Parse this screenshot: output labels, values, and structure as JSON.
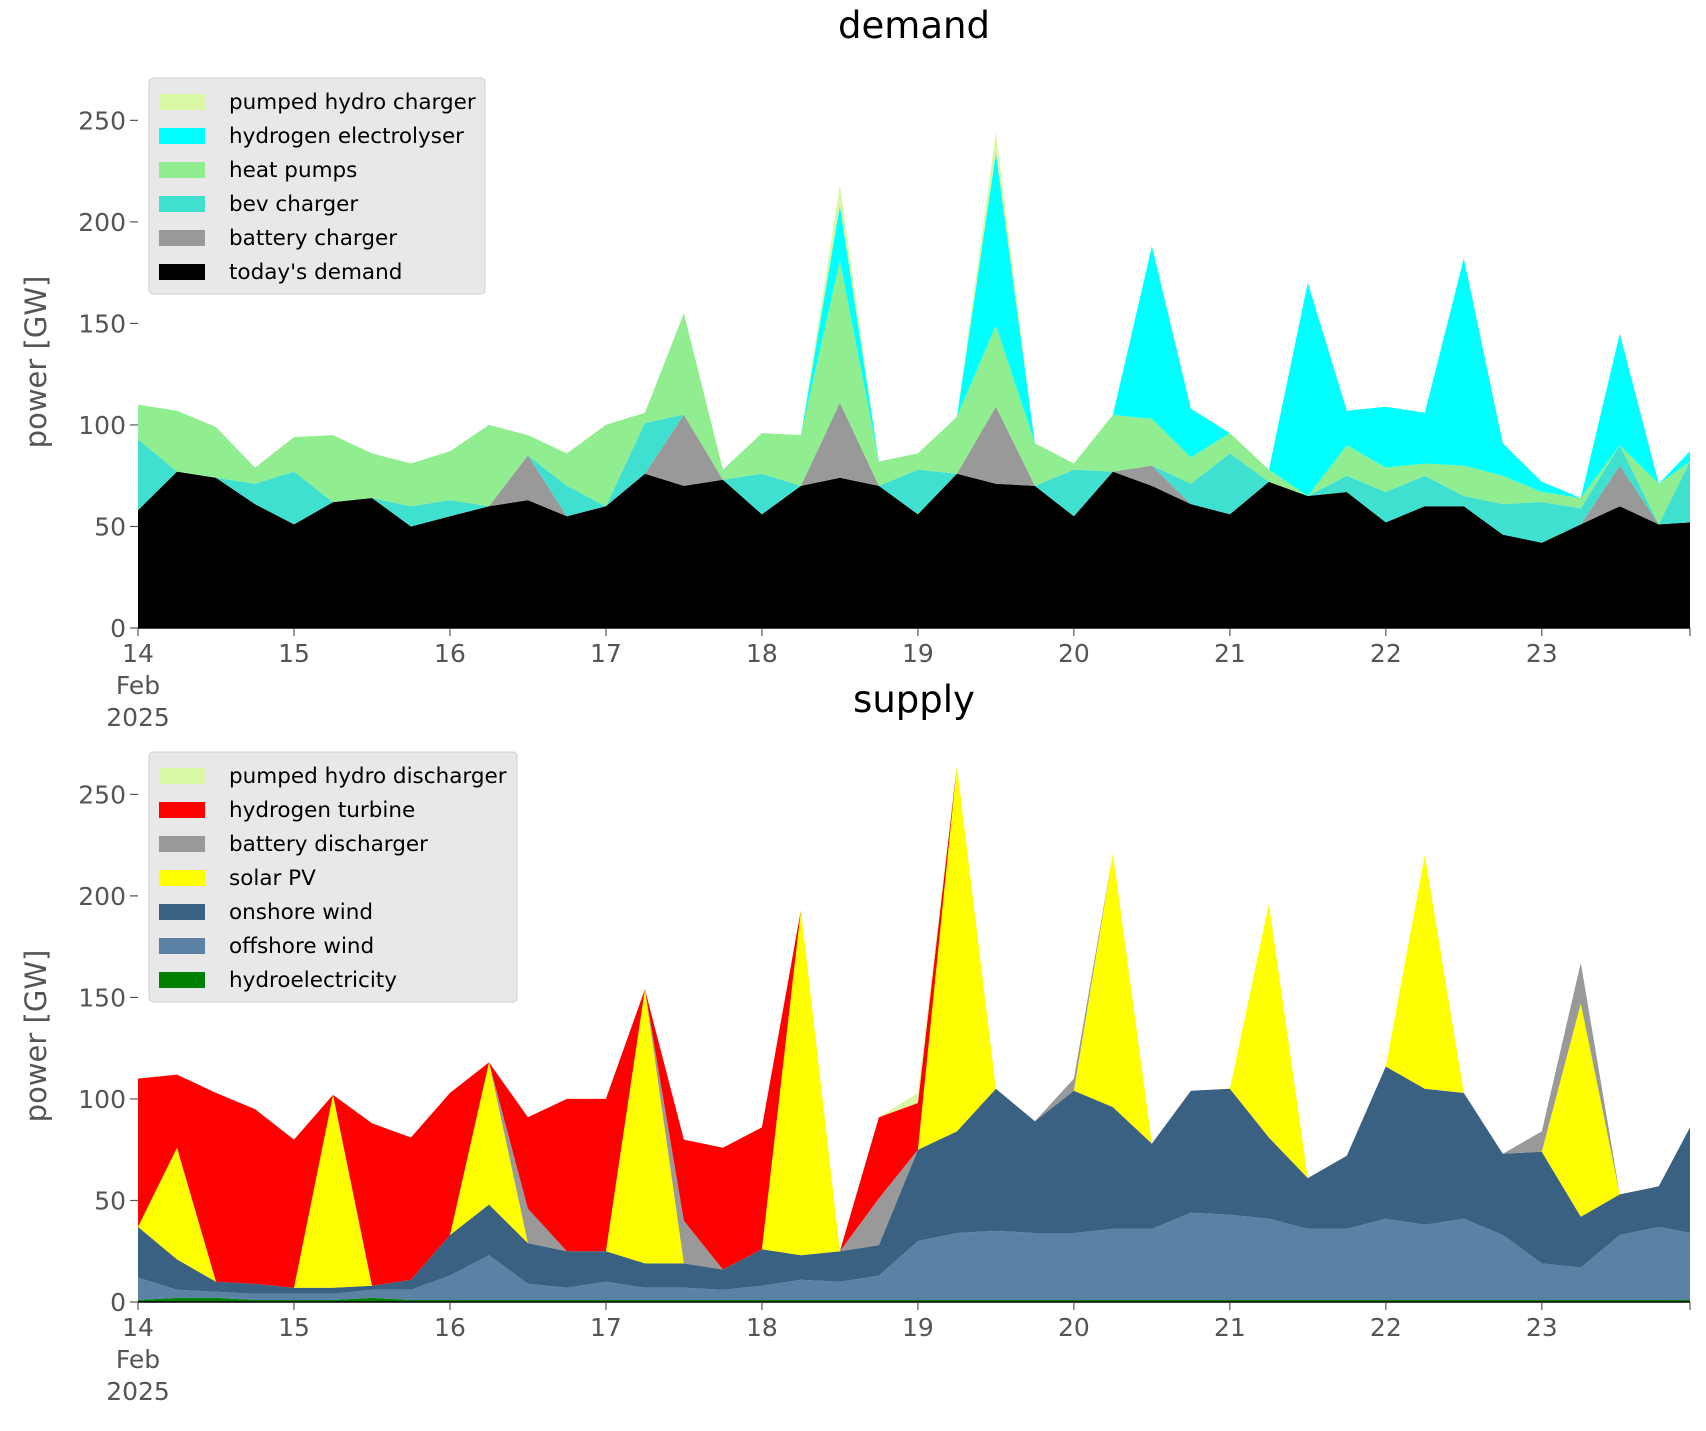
{
  "chart_data": [
    {
      "type": "area",
      "title": "demand",
      "ylabel": "power [GW]",
      "xlabel": "",
      "ylim": [
        0,
        262
      ],
      "yticks": [
        0,
        50,
        100,
        150,
        200,
        250
      ],
      "x_tick_labels": [
        "14\nFeb\n2025",
        "15",
        "16",
        "17",
        "18",
        "19",
        "20",
        "21",
        "22",
        "23"
      ],
      "x_unit": "days since 14 Feb 2025",
      "x": [
        0,
        0.25,
        0.5,
        0.75,
        1,
        1.25,
        1.5,
        1.75,
        2,
        2.25,
        2.5,
        2.75,
        3,
        3.25,
        3.5,
        3.75,
        4,
        4.25,
        4.5,
        4.75,
        5,
        5.25,
        5.5,
        5.75,
        6,
        6.25,
        6.5,
        6.75,
        7,
        7.25,
        7.5,
        7.75,
        8,
        8.25,
        8.5,
        8.75,
        9,
        9.25,
        9.5,
        9.75,
        9.95
      ],
      "legend_position": "upper left",
      "grid": false,
      "series": [
        {
          "name": "today's demand",
          "color": "#000000",
          "values": [
            58,
            77,
            74,
            61,
            51,
            62,
            64,
            50,
            55,
            60,
            63,
            55,
            60,
            76,
            70,
            73,
            56,
            70,
            74,
            70,
            56,
            76,
            71,
            70,
            55,
            77,
            70,
            61,
            56,
            72,
            65,
            67,
            52,
            60,
            60,
            46,
            42,
            51,
            60,
            51,
            52
          ]
        },
        {
          "name": "battery charger",
          "color": "#999999",
          "values": [
            0,
            0,
            0,
            0,
            0,
            0,
            0,
            0,
            0,
            0,
            22,
            0,
            0,
            0,
            35,
            0,
            0,
            0,
            37,
            0,
            0,
            0,
            38,
            0,
            0,
            0,
            10,
            0,
            0,
            0,
            0,
            0,
            0,
            0,
            0,
            0,
            0,
            0,
            20,
            0,
            0
          ]
        },
        {
          "name": "bev charger",
          "color": "#40e0d0",
          "values": [
            35,
            0,
            0,
            10,
            26,
            0,
            0,
            10,
            8,
            0,
            0,
            15,
            0,
            25,
            0,
            0,
            20,
            0,
            0,
            0,
            22,
            0,
            0,
            0,
            23,
            0,
            0,
            10,
            30,
            0,
            0,
            8,
            15,
            15,
            5,
            15,
            20,
            8,
            10,
            0,
            30
          ]
        },
        {
          "name": "heat pumps",
          "color": "#90ee90",
          "values": [
            17,
            30,
            25,
            8,
            17,
            33,
            22,
            21,
            24,
            40,
            10,
            16,
            40,
            5,
            50,
            5,
            20,
            25,
            70,
            12,
            8,
            28,
            40,
            21,
            3,
            28,
            23,
            13,
            10,
            6,
            0,
            15,
            12,
            6,
            15,
            14,
            5,
            5,
            0,
            20,
            0
          ]
        },
        {
          "name": "hydrogen electrolyser",
          "color": "#00ffff",
          "values": [
            0,
            0,
            0,
            0,
            0,
            0,
            0,
            0,
            0,
            0,
            0,
            0,
            0,
            0,
            0,
            0,
            0,
            0,
            27,
            0,
            0,
            0,
            85,
            0,
            0,
            0,
            85,
            24,
            0,
            0,
            105,
            17,
            30,
            25,
            102,
            16,
            5,
            0,
            55,
            0,
            5
          ]
        },
        {
          "name": "pumped hydro charger",
          "color": "#d9f7a5",
          "values": [
            0,
            0,
            0,
            0,
            0,
            0,
            0,
            0,
            0,
            0,
            0,
            0,
            0,
            0,
            0,
            0,
            0,
            0,
            10,
            0,
            0,
            0,
            10,
            0,
            0,
            0,
            0,
            0,
            0,
            0,
            0,
            0,
            0,
            0,
            0,
            0,
            0,
            0,
            0,
            0,
            0
          ]
        }
      ]
    },
    {
      "type": "area",
      "title": "supply",
      "ylabel": "power [GW]",
      "xlabel": "",
      "ylim": [
        0,
        262
      ],
      "yticks": [
        0,
        50,
        100,
        150,
        200,
        250
      ],
      "x_tick_labels": [
        "14\nFeb\n2025",
        "15",
        "16",
        "17",
        "18",
        "19",
        "20",
        "21",
        "22",
        "23"
      ],
      "x_unit": "days since 14 Feb 2025",
      "x": [
        0,
        0.25,
        0.5,
        0.75,
        1,
        1.25,
        1.5,
        1.75,
        2,
        2.25,
        2.5,
        2.75,
        3,
        3.25,
        3.5,
        3.75,
        4,
        4.25,
        4.5,
        4.75,
        5,
        5.25,
        5.5,
        5.75,
        6,
        6.25,
        6.5,
        6.75,
        7,
        7.25,
        7.5,
        7.75,
        8,
        8.25,
        8.5,
        8.75,
        9,
        9.25,
        9.5,
        9.75,
        9.95
      ],
      "legend_position": "upper left",
      "grid": false,
      "series": [
        {
          "name": "hydroelectricity",
          "color": "#008000",
          "values": [
            1,
            2,
            2,
            1,
            1,
            1,
            2,
            1,
            1,
            1,
            1,
            1,
            1,
            1,
            1,
            1,
            1,
            1,
            1,
            1,
            1,
            1,
            1,
            1,
            1,
            1,
            1,
            1,
            1,
            1,
            1,
            1,
            1,
            1,
            1,
            1,
            1,
            1,
            1,
            1,
            1
          ]
        },
        {
          "name": "offshore wind",
          "color": "#5b82a5",
          "values": [
            11,
            4,
            3,
            3,
            3,
            3,
            4,
            5,
            12,
            22,
            8,
            6,
            9,
            6,
            6,
            5,
            7,
            10,
            9,
            12,
            29,
            33,
            34,
            33,
            33,
            35,
            35,
            43,
            42,
            40,
            35,
            35,
            40,
            37,
            40,
            32,
            18,
            16,
            32,
            36,
            33
          ]
        },
        {
          "name": "onshore wind",
          "color": "#3a6182",
          "values": [
            25,
            15,
            5,
            5,
            3,
            3,
            2,
            5,
            20,
            25,
            20,
            18,
            15,
            12,
            12,
            10,
            18,
            12,
            15,
            15,
            45,
            50,
            70,
            55,
            70,
            60,
            42,
            60,
            62,
            40,
            25,
            36,
            75,
            67,
            62,
            40,
            55,
            25,
            20,
            20,
            52
          ]
        },
        {
          "name": "solar PV",
          "color": "#ffff00",
          "values": [
            0,
            55,
            0,
            0,
            0,
            95,
            0,
            0,
            0,
            70,
            0,
            0,
            0,
            135,
            0,
            0,
            0,
            170,
            0,
            0,
            0,
            180,
            0,
            0,
            0,
            125,
            0,
            0,
            0,
            115,
            0,
            0,
            0,
            115,
            0,
            0,
            0,
            105,
            0,
            0,
            0
          ]
        },
        {
          "name": "battery discharger",
          "color": "#999999",
          "values": [
            0,
            0,
            0,
            0,
            0,
            0,
            0,
            0,
            0,
            0,
            17,
            0,
            0,
            0,
            21,
            0,
            0,
            0,
            0,
            23,
            0,
            0,
            0,
            0,
            6,
            0,
            0,
            0,
            0,
            0,
            0,
            0,
            0,
            0,
            0,
            0,
            10,
            20,
            0,
            0,
            0
          ]
        },
        {
          "name": "hydrogen turbine",
          "color": "#ff0000",
          "values": [
            73,
            36,
            93,
            86,
            73,
            0,
            80,
            70,
            70,
            0,
            45,
            75,
            75,
            0,
            40,
            60,
            60,
            0,
            0,
            40,
            23,
            0,
            0,
            0,
            0,
            0,
            0,
            0,
            0,
            0,
            0,
            0,
            0,
            0,
            0,
            0,
            0,
            0,
            0,
            0,
            0
          ]
        },
        {
          "name": "pumped hydro discharger",
          "color": "#d9f7a5",
          "values": [
            0,
            0,
            0,
            0,
            0,
            0,
            0,
            0,
            0,
            0,
            0,
            0,
            0,
            0,
            0,
            0,
            0,
            0,
            0,
            0,
            5,
            0,
            0,
            0,
            0,
            0,
            0,
            0,
            0,
            0,
            0,
            0,
            0,
            0,
            0,
            0,
            0,
            0,
            0,
            0,
            0
          ]
        }
      ]
    }
  ]
}
